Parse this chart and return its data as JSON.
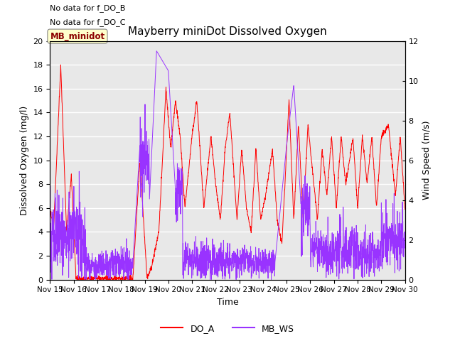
{
  "title": "Mayberry miniDot Dissolved Oxygen",
  "xlabel": "Time",
  "ylabel_left": "Dissolved Oxygen (mg/l)",
  "ylabel_right": "Wind Speed (m/s)",
  "legend_labels": [
    "DO_A",
    "MB_WS"
  ],
  "no_data_text": [
    "No data for f_DO_B",
    "No data for f_DO_C"
  ],
  "box_label": "MB_minidot",
  "ylim_left": [
    0,
    20
  ],
  "ylim_right": [
    0,
    12
  ],
  "yticks_left": [
    0,
    2,
    4,
    6,
    8,
    10,
    12,
    14,
    16,
    18,
    20
  ],
  "yticks_right": [
    0,
    2,
    4,
    6,
    8,
    10,
    12
  ],
  "xtick_labels": [
    "Nov 15",
    "Nov 16",
    "Nov 17",
    "Nov 18",
    "Nov 19",
    "Nov 20",
    "Nov 21",
    "Nov 22",
    "Nov 23",
    "Nov 24",
    "Nov 25",
    "Nov 26",
    "Nov 27",
    "Nov 28",
    "Nov 29",
    "Nov 30"
  ],
  "plot_bg_color": "#e8e8e8",
  "line_color_DO": "red",
  "line_color_WS": "#9933FF",
  "grid_color": "white"
}
